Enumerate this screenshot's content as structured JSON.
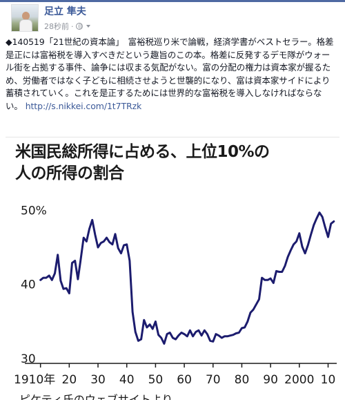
{
  "post": {
    "author": "足立 隼夫",
    "time": "28秒前",
    "separator": "·",
    "privacy_icon": "globe-icon",
    "body": "◆140519「21世紀の資本論」　富裕税巡り米で論戦，経済学書がベストセラー。格差是正には富裕税を導入すべきだという趣旨のこの本。格差に反発するデモ隊がウォール街を占拠する事件、論争には収まる気配がない。富の分配の権力は資本家が握るため、労働者ではなく子どもに相続させようと世襲的になり、富は資本家サイドにより蓄積されていく。これを是正するためには世界的な富裕税を導入しなければならない。",
    "link": "http://s.nikkei.com/1t7TRzk"
  },
  "chart_data": {
    "type": "line",
    "title_line1": "米国民総所得に占める、上位10%の",
    "title_line2": "人の所得の割合",
    "ylim": [
      30,
      52
    ],
    "y_ticks": [
      {
        "value": 50,
        "label": "50%"
      },
      {
        "value": 40,
        "label": "40"
      },
      {
        "value": 30,
        "label": "30"
      }
    ],
    "xlim": [
      1906,
      2013
    ],
    "x_ticks": [
      {
        "value": 1910,
        "label": "1910年"
      },
      {
        "value": 1920,
        "label": "20"
      },
      {
        "value": 1930,
        "label": "30"
      },
      {
        "value": 1940,
        "label": "40"
      },
      {
        "value": 1950,
        "label": "50"
      },
      {
        "value": 1960,
        "label": "60"
      },
      {
        "value": 1970,
        "label": "70"
      },
      {
        "value": 1980,
        "label": "80"
      },
      {
        "value": 1990,
        "label": "90"
      },
      {
        "value": 2000,
        "label": "2000"
      },
      {
        "value": 2010,
        "label": "10"
      }
    ],
    "line_color": "#1c1c6e",
    "series": [
      {
        "x": [
          1910,
          1911,
          1912,
          1913,
          1914,
          1915,
          1916,
          1917,
          1918,
          1919,
          1920,
          1921,
          1922,
          1923,
          1924,
          1925,
          1926,
          1927,
          1928,
          1929,
          1930,
          1931,
          1932,
          1933,
          1934,
          1935,
          1936,
          1937,
          1938,
          1939,
          1940,
          1941,
          1942,
          1943,
          1944,
          1945,
          1946,
          1947,
          1948,
          1949,
          1950,
          1951,
          1952,
          1953,
          1954,
          1955,
          1956,
          1957,
          1958,
          1959,
          1960,
          1961,
          1962,
          1963,
          1964,
          1965,
          1966,
          1967,
          1968,
          1969,
          1970,
          1971,
          1972,
          1973,
          1974,
          1975,
          1976,
          1977,
          1978,
          1979,
          1980,
          1981,
          1982,
          1983,
          1984,
          1985,
          1986,
          1987,
          1988,
          1989,
          1990,
          1991,
          1992,
          1993,
          1994,
          1995,
          1996,
          1997,
          1998,
          1999,
          2000,
          2001,
          2002,
          2003,
          2004,
          2005,
          2006,
          2007,
          2008,
          2009,
          2010,
          2011,
          2012
        ],
        "values": [
          40.6,
          40.9,
          40.9,
          41.2,
          40.6,
          41.5,
          44.0,
          40.5,
          39.4,
          39.5,
          38.8,
          42.9,
          43.2,
          40.7,
          43.4,
          46.3,
          45.8,
          47.5,
          48.7,
          46.7,
          45.0,
          45.6,
          45.8,
          46.3,
          45.7,
          45.4,
          46.8,
          44.9,
          44.2,
          45.3,
          45.4,
          43.2,
          36.3,
          33.6,
          32.4,
          32.6,
          35.2,
          34.2,
          34.6,
          34.0,
          35.0,
          33.2,
          32.8,
          32.0,
          33.3,
          33.5,
          32.8,
          32.6,
          33.1,
          33.5,
          33.3,
          33.0,
          33.8,
          33.0,
          33.6,
          33.8,
          33.1,
          33.8,
          33.3,
          32.4,
          32.3,
          33.3,
          33.1,
          32.8,
          33.0,
          33.0,
          33.1,
          33.2,
          33.4,
          33.5,
          34.1,
          34.2,
          35.0,
          36.2,
          36.6,
          37.3,
          38.0,
          40.9,
          40.6,
          40.6,
          40.8,
          40.2,
          41.8,
          41.7,
          41.7,
          42.5,
          43.7,
          44.6,
          45.4,
          45.8,
          46.9,
          45.1,
          44.2,
          45.3,
          46.7,
          48.0,
          48.9,
          49.7,
          49.1,
          47.7,
          46.4,
          48.2,
          48.5
        ]
      }
    ]
  },
  "source_note": "ピケティ氏のウェブサイトより"
}
